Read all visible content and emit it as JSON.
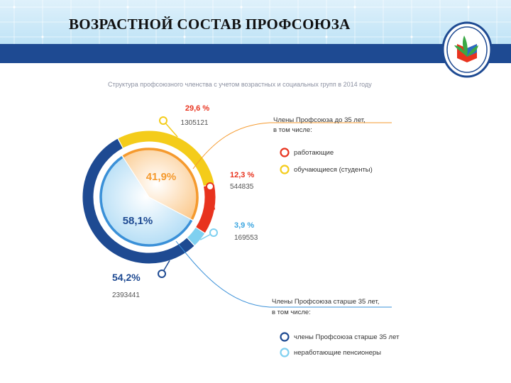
{
  "header": {
    "title": "ВОЗРАСТНОЙ СОСТАВ ПРОФСОЮЗА"
  },
  "colors": {
    "yellow": "#f4cc1a",
    "orange": "#f59a2e",
    "red": "#e8331e",
    "lightblue": "#7fd0f0",
    "darkblue": "#1e4a92",
    "blue": "#3a90d8",
    "title_gray": "#8a8fa0"
  },
  "chart_data": {
    "type": "pie",
    "title": "Структура профсоюзного членства с учетом возрастных и социальных групп в 2014 году",
    "inner": [
      {
        "label": "41,9%",
        "value": 41.9
      },
      {
        "label": "58,1%",
        "value": 58.1
      }
    ],
    "outer": [
      {
        "label": "29,6 %",
        "value": 29.6,
        "count": "1305121"
      },
      {
        "label": "12,3 %",
        "value": 12.3,
        "count": "544835"
      },
      {
        "label": "3,9 %",
        "value": 3.9,
        "count": "169553"
      },
      {
        "label": "54,2%",
        "value": 54.2,
        "count": "2393441"
      }
    ],
    "groups": [
      {
        "heading1": "Члены Профсоюза до 35 лет,",
        "heading2": "в том числе:",
        "legend": [
          "работающие",
          "обучающиеся (студенты)"
        ]
      },
      {
        "heading1": "Члены Профсоюза старше 35 лет,",
        "heading2": "в том числе:",
        "legend": [
          "члены Профсоюза старше 35 лет",
          "неработающие пенсионеры"
        ]
      }
    ]
  }
}
